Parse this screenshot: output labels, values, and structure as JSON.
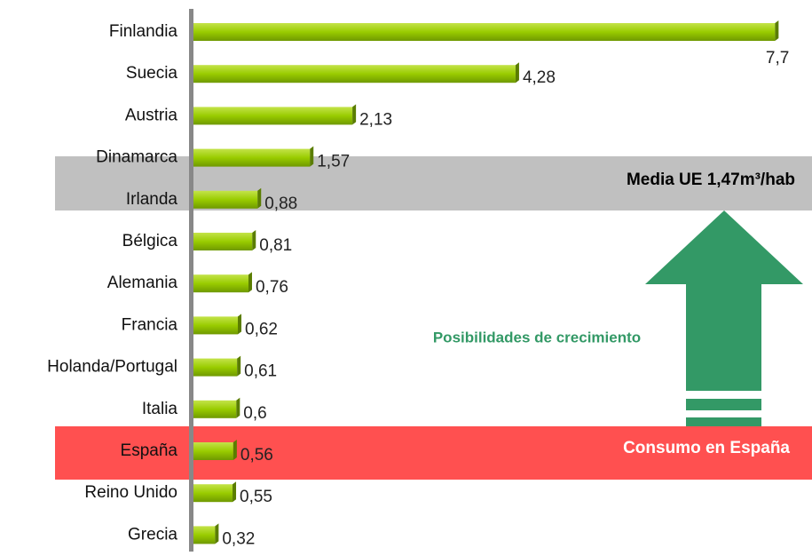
{
  "chart_data": {
    "type": "bar",
    "orientation": "horizontal",
    "categories": [
      "Finlandia",
      "Suecia",
      "Austria",
      "Dinamarca",
      "Irlanda",
      "Bélgica",
      "Alemania",
      "Francia",
      "Holanda/Portugal",
      "Italia",
      "España",
      "Reino Unido",
      "Grecia"
    ],
    "values": [
      7.7,
      4.28,
      2.13,
      1.57,
      0.88,
      0.81,
      0.76,
      0.62,
      0.61,
      0.6,
      0.56,
      0.55,
      0.32
    ],
    "value_labels": [
      "7,7",
      "4,28",
      "2,13",
      "1,57",
      "0,88",
      "0,81",
      "0,76",
      "0,62",
      "0,61",
      "0,6",
      "0,56",
      "0,55",
      "0,32"
    ],
    "color": "#99cc00",
    "xlim": [
      0,
      8
    ],
    "annotations": [
      "Media UE 1,47m³/hab",
      "Posibilidades de crecimiento",
      "Consumo en España"
    ]
  }
}
